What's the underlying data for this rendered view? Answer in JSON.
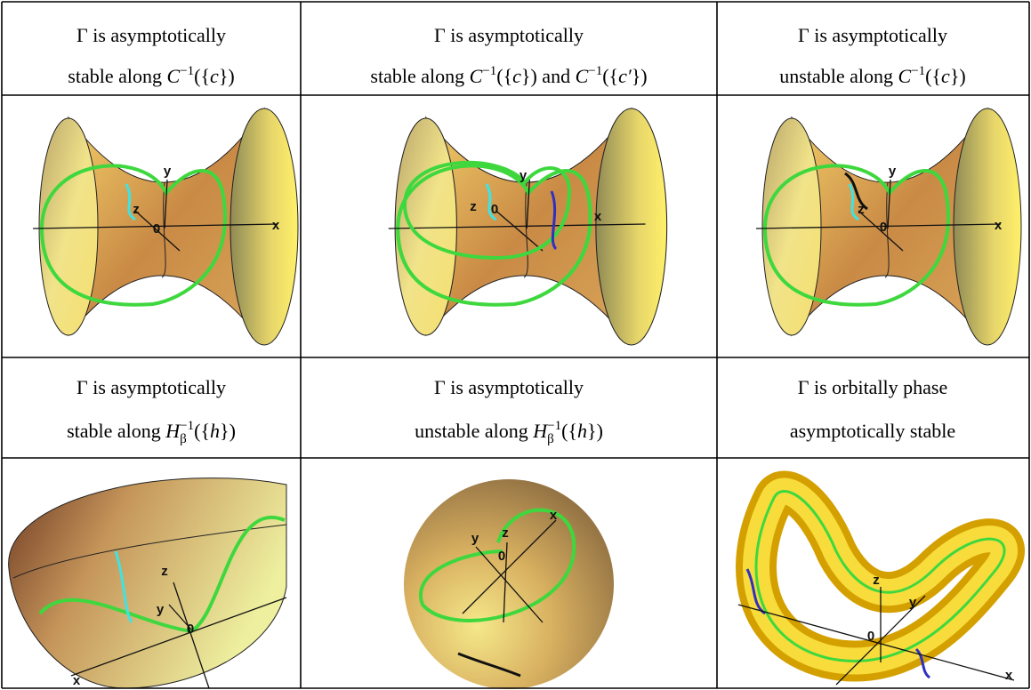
{
  "table": {
    "header_rows": [
      [
        {
          "lines": [
            [
              {
                "text": "Γ is asymptotically"
              }
            ],
            [
              {
                "text": "stable along "
              },
              {
                "text": "C",
                "style": "italic"
              },
              {
                "text": "−1",
                "style": "sup"
              },
              {
                "text": "({"
              },
              {
                "text": "c",
                "style": "italic"
              },
              {
                "text": "})"
              }
            ]
          ]
        },
        {
          "lines": [
            [
              {
                "text": "Γ is asymptotically"
              }
            ],
            [
              {
                "text": "stable along "
              },
              {
                "text": "C",
                "style": "italic"
              },
              {
                "text": "−1",
                "style": "sup"
              },
              {
                "text": "({"
              },
              {
                "text": "c",
                "style": "italic"
              },
              {
                "text": "}) and "
              },
              {
                "text": "C",
                "style": "italic"
              },
              {
                "text": "−1",
                "style": "sup"
              },
              {
                "text": "({"
              },
              {
                "text": "c′",
                "style": "italic"
              },
              {
                "text": "})"
              }
            ]
          ]
        },
        {
          "lines": [
            [
              {
                "text": "Γ is asymptotically"
              }
            ],
            [
              {
                "text": "unstable along "
              },
              {
                "text": "C",
                "style": "italic"
              },
              {
                "text": "−1",
                "style": "sup"
              },
              {
                "text": "({"
              },
              {
                "text": "c",
                "style": "italic"
              },
              {
                "text": "})"
              }
            ]
          ]
        }
      ],
      [
        {
          "lines": [
            [
              {
                "text": "Γ is asymptotically"
              }
            ],
            [
              {
                "text": "stable along "
              },
              {
                "text": "H",
                "style": "italic"
              },
              {
                "text": "β",
                "style": "sub"
              },
              {
                "text": "−1",
                "style": "sup"
              },
              {
                "text": "({"
              },
              {
                "text": "h",
                "style": "italic"
              },
              {
                "text": "})"
              }
            ]
          ]
        },
        {
          "lines": [
            [
              {
                "text": "Γ is asymptotically"
              }
            ],
            [
              {
                "text": "unstable along "
              },
              {
                "text": "H",
                "style": "italic"
              },
              {
                "text": "β",
                "style": "sub"
              },
              {
                "text": "−1",
                "style": "sup"
              },
              {
                "text": "({"
              },
              {
                "text": "h",
                "style": "italic"
              },
              {
                "text": "})"
              }
            ]
          ]
        },
        {
          "lines": [
            [
              {
                "text": "Γ is orbitally phase"
              }
            ],
            [
              {
                "text": "asymptotically stable"
              }
            ]
          ]
        }
      ]
    ],
    "figures": [
      [
        {
          "labels": [
            "y",
            "z",
            "0",
            "x"
          ]
        },
        {
          "labels": [
            "y",
            "z",
            "0",
            "x"
          ]
        },
        {
          "labels": [
            "y",
            "z",
            "0",
            "x"
          ]
        }
      ],
      [
        {
          "labels": [
            "z",
            "y",
            "0",
            "x"
          ]
        },
        {
          "labels": [
            "y",
            "z",
            "x",
            "0"
          ]
        },
        {
          "labels": [
            "z",
            "y",
            "0",
            "x"
          ]
        }
      ]
    ]
  }
}
